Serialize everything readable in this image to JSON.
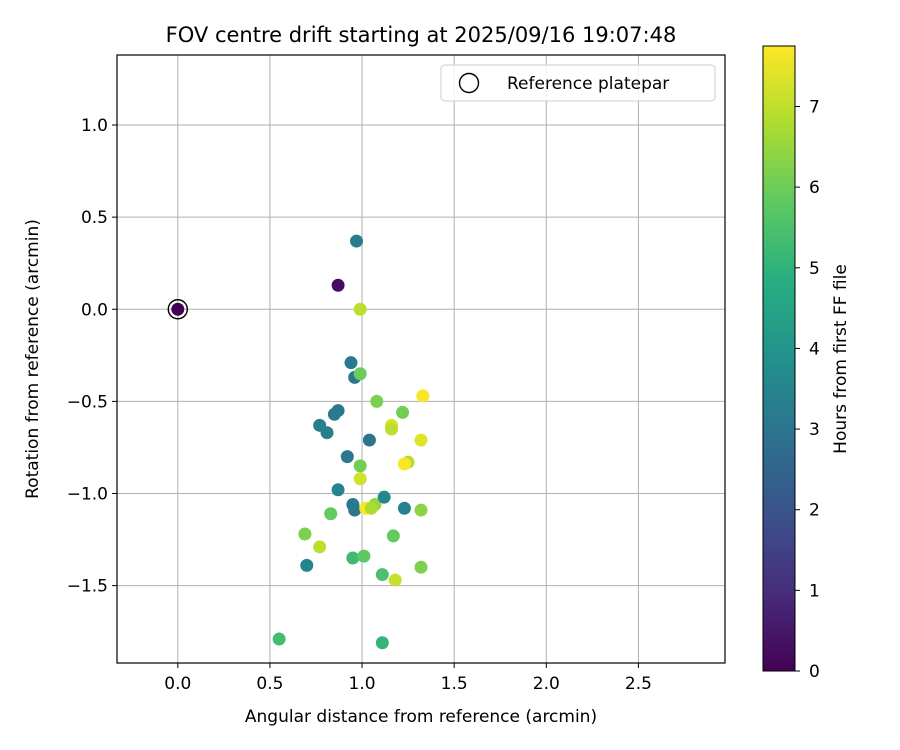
{
  "chart_data": {
    "type": "scatter",
    "title": "FOV centre drift starting at 2025/09/16 19:07:48",
    "xlabel": "Angular distance from reference (arcmin)",
    "ylabel": "Rotation from reference (arcmin)",
    "xlim": [
      -0.33,
      2.97
    ],
    "ylim": [
      -1.92,
      1.38
    ],
    "xticks": [
      0.0,
      0.5,
      1.0,
      1.5,
      2.0,
      2.5
    ],
    "xtick_labels": [
      "0.0",
      "0.5",
      "1.0",
      "1.5",
      "2.0",
      "2.5"
    ],
    "yticks": [
      1.0,
      0.5,
      0.0,
      -0.5,
      -1.0,
      -1.5
    ],
    "ytick_labels": [
      "1.0",
      "0.5",
      "0.0",
      "−0.5",
      "−1.0",
      "−1.5"
    ],
    "grid": true,
    "legend": {
      "location": "top-right",
      "entries": [
        "Reference platepar"
      ]
    },
    "colorbar": {
      "label": "Hours from first FF file",
      "range": [
        0,
        7.75
      ],
      "ticks": [
        0,
        1,
        2,
        3,
        4,
        5,
        6,
        7
      ],
      "tick_labels": [
        "0",
        "1",
        "2",
        "3",
        "4",
        "5",
        "6",
        "7"
      ],
      "colormap": "viridis"
    },
    "reference_point": {
      "x": 0.0,
      "y": 0.0,
      "hours": 0.0
    },
    "points": [
      {
        "x": 0.87,
        "y": 0.13,
        "hours": 0.3
      },
      {
        "x": 0.97,
        "y": 0.37,
        "hours": 3.3
      },
      {
        "x": 0.99,
        "y": 0.0,
        "hours": 7.0
      },
      {
        "x": 0.94,
        "y": -0.29,
        "hours": 3.2
      },
      {
        "x": 0.96,
        "y": -0.37,
        "hours": 3.1
      },
      {
        "x": 0.99,
        "y": -0.35,
        "hours": 6.0
      },
      {
        "x": 1.08,
        "y": -0.5,
        "hours": 6.2
      },
      {
        "x": 0.87,
        "y": -0.55,
        "hours": 3.1
      },
      {
        "x": 0.85,
        "y": -0.57,
        "hours": 3.2
      },
      {
        "x": 0.77,
        "y": -0.63,
        "hours": 3.3
      },
      {
        "x": 0.81,
        "y": -0.67,
        "hours": 3.4
      },
      {
        "x": 1.04,
        "y": -0.71,
        "hours": 3.0
      },
      {
        "x": 0.92,
        "y": -0.8,
        "hours": 3.1
      },
      {
        "x": 0.99,
        "y": -0.85,
        "hours": 6.1
      },
      {
        "x": 0.99,
        "y": -0.92,
        "hours": 7.2
      },
      {
        "x": 0.87,
        "y": -0.98,
        "hours": 3.5
      },
      {
        "x": 0.95,
        "y": -1.06,
        "hours": 3.2
      },
      {
        "x": 0.96,
        "y": -1.09,
        "hours": 3.1
      },
      {
        "x": 1.02,
        "y": -1.08,
        "hours": 7.7
      },
      {
        "x": 1.07,
        "y": -1.06,
        "hours": 6.5
      },
      {
        "x": 1.05,
        "y": -1.08,
        "hours": 6.8
      },
      {
        "x": 1.12,
        "y": -1.02,
        "hours": 3.6
      },
      {
        "x": 1.23,
        "y": -1.08,
        "hours": 3.4
      },
      {
        "x": 1.32,
        "y": -1.09,
        "hours": 6.4
      },
      {
        "x": 1.22,
        "y": -0.56,
        "hours": 6.1
      },
      {
        "x": 1.16,
        "y": -0.63,
        "hours": 7.3
      },
      {
        "x": 1.16,
        "y": -0.65,
        "hours": 7.0
      },
      {
        "x": 1.33,
        "y": -0.47,
        "hours": 7.7
      },
      {
        "x": 1.32,
        "y": -0.71,
        "hours": 7.4
      },
      {
        "x": 1.25,
        "y": -0.83,
        "hours": 6.9
      },
      {
        "x": 1.23,
        "y": -0.84,
        "hours": 7.7
      },
      {
        "x": 0.83,
        "y": -1.11,
        "hours": 5.9
      },
      {
        "x": 0.69,
        "y": -1.22,
        "hours": 6.2
      },
      {
        "x": 0.77,
        "y": -1.29,
        "hours": 7.0
      },
      {
        "x": 0.7,
        "y": -1.39,
        "hours": 3.5
      },
      {
        "x": 0.95,
        "y": -1.35,
        "hours": 5.3
      },
      {
        "x": 1.01,
        "y": -1.34,
        "hours": 5.8
      },
      {
        "x": 1.11,
        "y": -1.44,
        "hours": 5.5
      },
      {
        "x": 1.18,
        "y": -1.47,
        "hours": 7.1
      },
      {
        "x": 1.17,
        "y": -1.23,
        "hours": 5.9
      },
      {
        "x": 1.32,
        "y": -1.4,
        "hours": 6.2
      },
      {
        "x": 0.55,
        "y": -1.79,
        "hours": 5.4
      },
      {
        "x": 1.11,
        "y": -1.81,
        "hours": 5.1
      }
    ]
  }
}
